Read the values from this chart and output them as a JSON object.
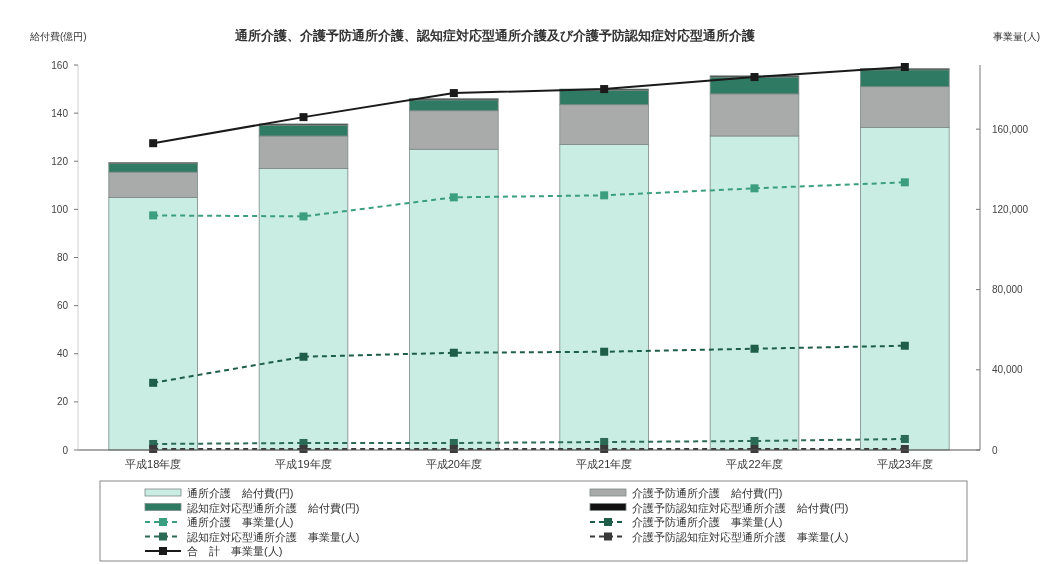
{
  "chart_data": {
    "type": "bar",
    "title": "通所介護、介護予防通所介護、認知症対応型通所介護及び介護予防認知症対応型通所介護",
    "ylabel": "給付費(億円)",
    "y2label": "事業量(人)",
    "categories": [
      "平成18年度",
      "平成19年度",
      "平成20年度",
      "平成21年度",
      "平成22年度",
      "平成23年度"
    ],
    "stacked": true,
    "legend": "bottom",
    "ylim": [
      0,
      160
    ],
    "yticks": [
      0,
      20,
      40,
      60,
      80,
      100,
      120,
      140,
      160
    ],
    "y2lim": [
      0,
      192000
    ],
    "y2ticks": [
      0,
      {
        "value": 40000,
        "label": "40,000"
      },
      {
        "value": 80000,
        "label": "80,000"
      },
      {
        "value": 120000,
        "label": "120,000"
      },
      {
        "value": 160000,
        "label": "160,000"
      }
    ],
    "series": [
      {
        "name": "通所介護　給付費(円)",
        "color": "#c9ece3",
        "values": [
          105,
          117,
          125,
          127,
          130.5,
          134
        ]
      },
      {
        "name": "介護予防通所介護　給付費(円)",
        "color": "#a9abaa",
        "values": [
          10.5,
          13.5,
          16,
          16.5,
          17.5,
          17
        ]
      },
      {
        "name": "認知症対応型通所介護　給付費(円)",
        "color": "#2f7a62",
        "values": [
          3.5,
          4.5,
          4.5,
          6,
          7,
          7
        ]
      },
      {
        "name": "介護予防認知症対応型通所介護　給付費(円)",
        "color": "#111111",
        "values": [
          0.5,
          0.5,
          0.5,
          0.5,
          0.5,
          0.5
        ]
      },
      {
        "name": "通所介護　事業量(人)",
        "type": "line",
        "axis": "y2",
        "color": "#3b9e7e",
        "marker": "square",
        "line_style": "dashed",
        "values": [
          117000,
          116500,
          126000,
          127000,
          130500,
          133500
        ]
      },
      {
        "name": "介護予防通所介護　事業量(人)",
        "type": "line",
        "axis": "y2",
        "color": "#1e5e48",
        "marker": "square",
        "line_style": "dashed",
        "values": [
          33500,
          46500,
          48500,
          49000,
          50500,
          52000
        ]
      },
      {
        "name": "認知症対応型通所介護　事業量(人)",
        "type": "line",
        "axis": "y2",
        "color": "#2b6b55",
        "marker": "square",
        "line_style": "dashed",
        "values": [
          3000,
          3500,
          3500,
          4000,
          4500,
          5500
        ]
      },
      {
        "name": "介護予防認知症対応型通所介護　事業量(人)",
        "type": "line",
        "axis": "y2",
        "color": "#3a3a3a",
        "marker": "square",
        "line_style": "dashed",
        "values": [
          500,
          500,
          500,
          500,
          500,
          500
        ]
      },
      {
        "name": "合　計　事業量(人)",
        "type": "line",
        "axis": "y2",
        "color": "#1a1a1a",
        "marker": "square",
        "line_style": "solid",
        "values": [
          153000,
          166000,
          178000,
          180000,
          186000,
          191000
        ]
      }
    ]
  }
}
